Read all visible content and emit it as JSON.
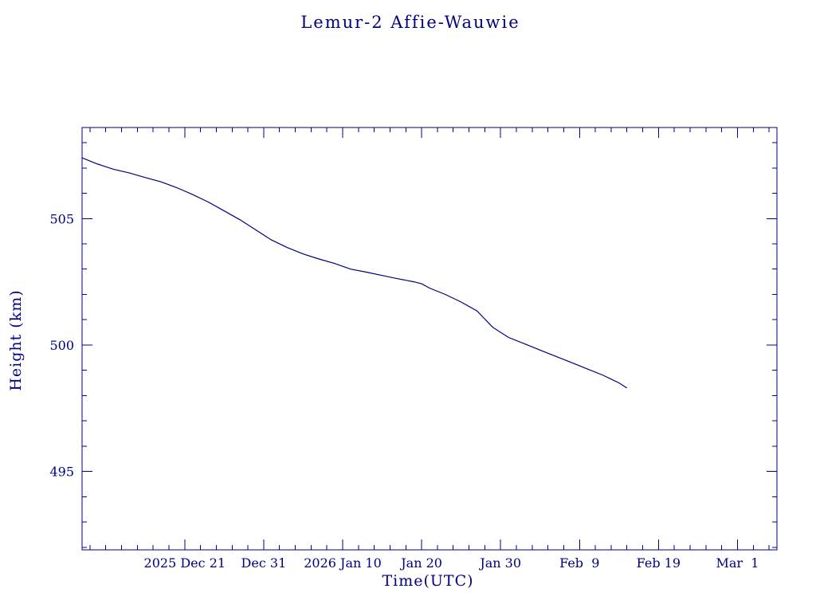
{
  "chart_data": {
    "type": "line",
    "title": "Lemur-2 Affie-Wauwie",
    "xlabel": "Time(UTC)",
    "ylabel": "Height (km)",
    "line_color": "#000080",
    "axis_color": "#000080",
    "background_color": "#ffffff",
    "grid": false,
    "legend": "none",
    "x_range": [
      "2025-12-08",
      "2026-03-06"
    ],
    "y_range": [
      491.9,
      508.6
    ],
    "y_major_ticks": [
      495,
      500,
      505
    ],
    "y_minor_tick_step": 1,
    "x_minor_tick_days": 2,
    "x_major_ticks": [
      {
        "date": "2025-12-21",
        "label": "2025 Dec 21"
      },
      {
        "date": "2025-12-31",
        "label": "Dec 31"
      },
      {
        "date": "2026-01-10",
        "label": "2026 Jan 10"
      },
      {
        "date": "2026-01-20",
        "label": "Jan 20"
      },
      {
        "date": "2026-01-30",
        "label": "Jan 30"
      },
      {
        "date": "2026-02-09",
        "label": "Feb  9"
      },
      {
        "date": "2026-02-19",
        "label": "Feb 19"
      },
      {
        "date": "2026-03-01",
        "label": "Mar  1"
      }
    ],
    "series": [
      {
        "name": "Lemur-2 Affie-Wauwie height",
        "points": [
          [
            "2025-12-08",
            507.4
          ],
          [
            "2025-12-10",
            507.15
          ],
          [
            "2025-12-12",
            506.95
          ],
          [
            "2025-12-14",
            506.8
          ],
          [
            "2025-12-16",
            506.62
          ],
          [
            "2025-12-18",
            506.45
          ],
          [
            "2025-12-20",
            506.22
          ],
          [
            "2025-12-22",
            505.95
          ],
          [
            "2025-12-24",
            505.65
          ],
          [
            "2025-12-26",
            505.3
          ],
          [
            "2025-12-28",
            504.95
          ],
          [
            "2025-12-30",
            504.55
          ],
          [
            "2026-01-01",
            504.15
          ],
          [
            "2026-01-03",
            503.85
          ],
          [
            "2026-01-05",
            503.6
          ],
          [
            "2026-01-07",
            503.4
          ],
          [
            "2026-01-09",
            503.22
          ],
          [
            "2026-01-11",
            503.0
          ],
          [
            "2026-01-13",
            502.88
          ],
          [
            "2026-01-15",
            502.75
          ],
          [
            "2026-01-17",
            502.62
          ],
          [
            "2026-01-19",
            502.5
          ],
          [
            "2026-01-20",
            502.42
          ],
          [
            "2026-01-21",
            502.25
          ],
          [
            "2026-01-23",
            502.0
          ],
          [
            "2026-01-25",
            501.7
          ],
          [
            "2026-01-27",
            501.35
          ],
          [
            "2026-01-29",
            500.7
          ],
          [
            "2026-01-31",
            500.3
          ],
          [
            "2026-02-02",
            500.05
          ],
          [
            "2026-02-04",
            499.8
          ],
          [
            "2026-02-06",
            499.55
          ],
          [
            "2026-02-08",
            499.3
          ],
          [
            "2026-02-10",
            499.05
          ],
          [
            "2026-02-12",
            498.8
          ],
          [
            "2026-02-14",
            498.5
          ],
          [
            "2026-02-15",
            498.3
          ]
        ]
      }
    ]
  }
}
